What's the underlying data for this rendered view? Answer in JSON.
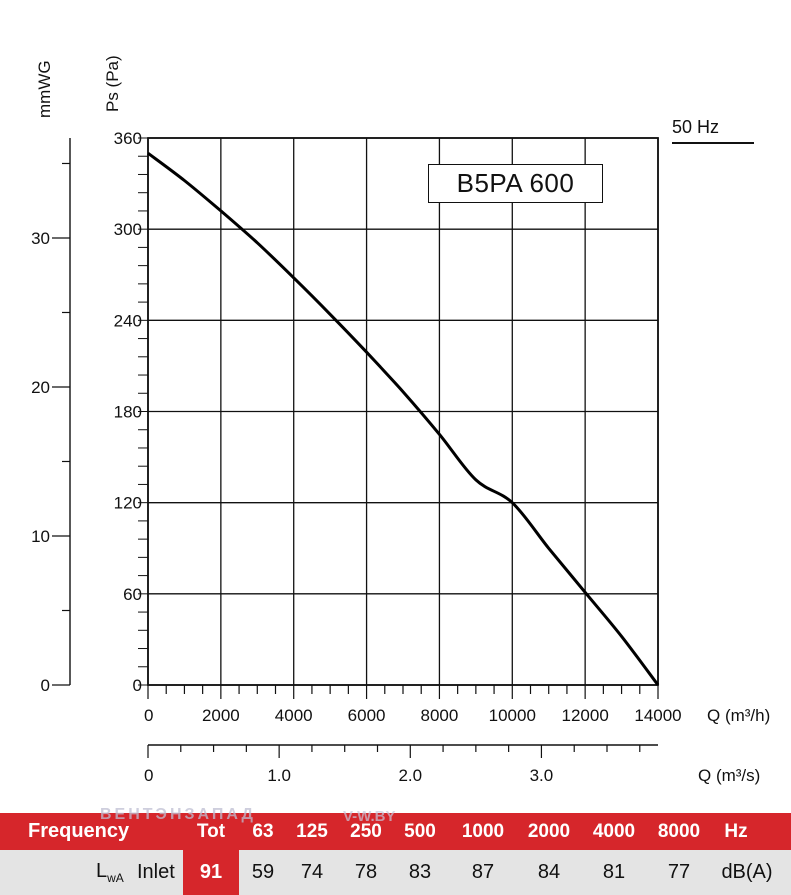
{
  "chart_data": {
    "type": "line",
    "title": "B5PA 600",
    "frequency_label": "50 Hz",
    "ylabel_left": "mmWG",
    "ylabel": "Ps (Pa)",
    "xlabel": "Q (m³/h)",
    "xlabel_secondary": "Q (m³/s)",
    "xlim": [
      0,
      14000
    ],
    "ylim": [
      0,
      360
    ],
    "x_ticks": [
      0,
      2000,
      4000,
      6000,
      8000,
      10000,
      12000,
      14000
    ],
    "y_ticks": [
      0,
      60,
      120,
      180,
      240,
      300,
      360
    ],
    "mmwg_ticks": [
      0,
      10,
      20,
      30
    ],
    "m3s_ticks": [
      "0",
      "1.0",
      "2.0",
      "3.0"
    ],
    "grid": true,
    "series": [
      {
        "color": "#000000",
        "x": [
          0,
          1000,
          2000,
          3000,
          4000,
          5000,
          6000,
          7000,
          8000,
          9000,
          10000,
          11000,
          12000,
          13000,
          14000
        ],
        "y": [
          350,
          332,
          312,
          291,
          268,
          244,
          219,
          193,
          165,
          135,
          120,
          90,
          61,
          32,
          0
        ]
      }
    ]
  },
  "sound_table": {
    "header_label": "Frequency",
    "header_tot": "Tot",
    "frequencies": [
      "63",
      "125",
      "250",
      "500",
      "1000",
      "2000",
      "4000",
      "8000"
    ],
    "header_unit": "Hz",
    "lwa_label": "L",
    "lwa_sub": "wA",
    "inlet_label": "Inlet",
    "tot_value": "91",
    "values": [
      "59",
      "74",
      "78",
      "83",
      "87",
      "84",
      "81",
      "77"
    ],
    "value_unit": "dB(A)"
  },
  "watermark": {
    "text": "ВЕНТЭНЗАПАД",
    "site": "V-W.BY"
  }
}
